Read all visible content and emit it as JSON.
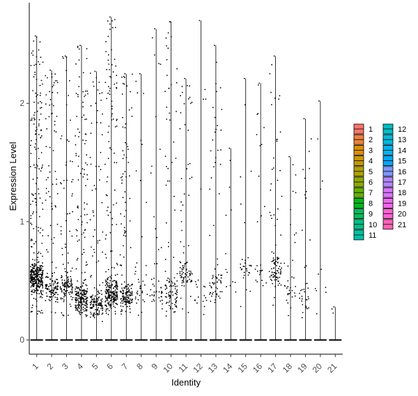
{
  "chart_data": {
    "type": "scatter",
    "subtype": "violin-jitter",
    "title": "",
    "xlabel": "Identity",
    "ylabel": "Expression Level",
    "categories": [
      "1",
      "2",
      "3",
      "4",
      "5",
      "6",
      "7",
      "8",
      "9",
      "10",
      "11",
      "12",
      "13",
      "14",
      "15",
      "16",
      "17",
      "18",
      "19",
      "20",
      "21"
    ],
    "ylim": [
      -0.12,
      2.85
    ],
    "yticks": [
      0,
      1,
      2
    ],
    "grid": false,
    "legend_position": "right",
    "legend_columns": 2,
    "point_color": "#000000",
    "colors": [
      "#F8766D",
      "#EC8239",
      "#DB8E00",
      "#C79800",
      "#AEA200",
      "#8FAA00",
      "#64B200",
      "#00B81B",
      "#00BD5C",
      "#00C085",
      "#00C1A7",
      "#00BFC4",
      "#00BADE",
      "#00B2F3",
      "#00A6FF",
      "#7C96FF",
      "#B385FF",
      "#D874FD",
      "#EF67EB",
      "#FD61D3",
      "#FF63B6"
    ],
    "violin_max": [
      2.57,
      2.28,
      2.4,
      2.49,
      2.27,
      2.73,
      2.25,
      2.25,
      2.63,
      2.69,
      2.21,
      2.7,
      2.49,
      1.62,
      2.21,
      2.17,
      2.4,
      1.55,
      1.87,
      2.02,
      0.28
    ],
    "expressing_count": [
      420,
      160,
      140,
      260,
      170,
      280,
      170,
      40,
      45,
      110,
      90,
      20,
      70,
      12,
      30,
      25,
      100,
      35,
      35,
      10,
      2
    ],
    "low_cluster_mean": [
      0.52,
      0.42,
      0.45,
      0.35,
      0.3,
      0.4,
      0.35,
      0.42,
      0.38,
      0.4,
      0.55,
      0.4,
      0.45,
      0.5,
      0.6,
      0.55,
      0.6,
      0.4,
      0.35,
      0.5,
      0.28
    ]
  }
}
